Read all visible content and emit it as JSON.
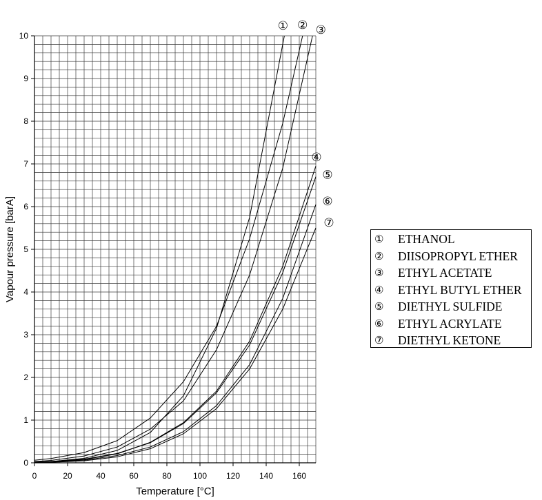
{
  "chart_data": {
    "type": "line",
    "xlabel": "Temperature [°C]",
    "ylabel": "Vapour pressure [barA]",
    "xlim": [
      0,
      170
    ],
    "ylim": [
      0,
      10
    ],
    "x_ticks": [
      0,
      20,
      40,
      60,
      80,
      100,
      120,
      140,
      160
    ],
    "y_ticks": [
      0,
      1,
      2,
      3,
      4,
      5,
      6,
      7,
      8,
      9,
      10
    ],
    "grid": {
      "on": true,
      "x_step": 5,
      "y_step": 0.2
    },
    "legend": "right",
    "line_color": "#000000",
    "series": [
      {
        "marker": "①",
        "name": "ETHANOL",
        "points": [
          [
            0,
            0.016
          ],
          [
            10,
            0.031
          ],
          [
            30,
            0.105
          ],
          [
            50,
            0.29
          ],
          [
            70,
            0.71
          ],
          [
            90,
            1.57
          ],
          [
            110,
            3.15
          ],
          [
            130,
            5.75
          ],
          [
            150,
            9.8
          ],
          [
            151,
            10
          ]
        ]
      },
      {
        "marker": "②",
        "name": "DIISOPROPYL ETHER",
        "points": [
          [
            0,
            0.06
          ],
          [
            10,
            0.1
          ],
          [
            30,
            0.24
          ],
          [
            50,
            0.52
          ],
          [
            70,
            1.05
          ],
          [
            90,
            1.9
          ],
          [
            110,
            3.2
          ],
          [
            130,
            5.25
          ],
          [
            150,
            7.95
          ],
          [
            162,
            10
          ]
        ]
      },
      {
        "marker": "③",
        "name": "ETHYL ACETATE",
        "points": [
          [
            0,
            0.03
          ],
          [
            10,
            0.056
          ],
          [
            30,
            0.16
          ],
          [
            50,
            0.37
          ],
          [
            70,
            0.79
          ],
          [
            90,
            1.45
          ],
          [
            110,
            2.65
          ],
          [
            130,
            4.4
          ],
          [
            150,
            6.9
          ],
          [
            168,
            10
          ]
        ]
      },
      {
        "marker": "④",
        "name": "ETHYL BUTYL ETHER",
        "points": [
          [
            0,
            0.015
          ],
          [
            10,
            0.027
          ],
          [
            30,
            0.075
          ],
          [
            50,
            0.21
          ],
          [
            70,
            0.48
          ],
          [
            90,
            0.94
          ],
          [
            110,
            1.68
          ],
          [
            130,
            2.85
          ],
          [
            150,
            4.6
          ],
          [
            170,
            6.95
          ]
        ]
      },
      {
        "marker": "⑤",
        "name": "DIETHYL SULFIDE",
        "points": [
          [
            0,
            0.02
          ],
          [
            10,
            0.033
          ],
          [
            30,
            0.085
          ],
          [
            50,
            0.22
          ],
          [
            70,
            0.47
          ],
          [
            90,
            0.92
          ],
          [
            110,
            1.64
          ],
          [
            130,
            2.76
          ],
          [
            150,
            4.45
          ],
          [
            170,
            6.7
          ]
        ]
      },
      {
        "marker": "⑥",
        "name": "ETHYL ACRYLATE",
        "points": [
          [
            0,
            0.012
          ],
          [
            10,
            0.021
          ],
          [
            30,
            0.062
          ],
          [
            50,
            0.17
          ],
          [
            70,
            0.37
          ],
          [
            90,
            0.73
          ],
          [
            110,
            1.34
          ],
          [
            130,
            2.3
          ],
          [
            150,
            3.85
          ],
          [
            170,
            6.05
          ]
        ]
      },
      {
        "marker": "⑦",
        "name": "DIETHYL KETONE",
        "points": [
          [
            0,
            0.006
          ],
          [
            10,
            0.013
          ],
          [
            30,
            0.046
          ],
          [
            50,
            0.14
          ],
          [
            70,
            0.33
          ],
          [
            90,
            0.68
          ],
          [
            110,
            1.27
          ],
          [
            130,
            2.2
          ],
          [
            150,
            3.6
          ],
          [
            170,
            5.5
          ]
        ]
      }
    ]
  }
}
